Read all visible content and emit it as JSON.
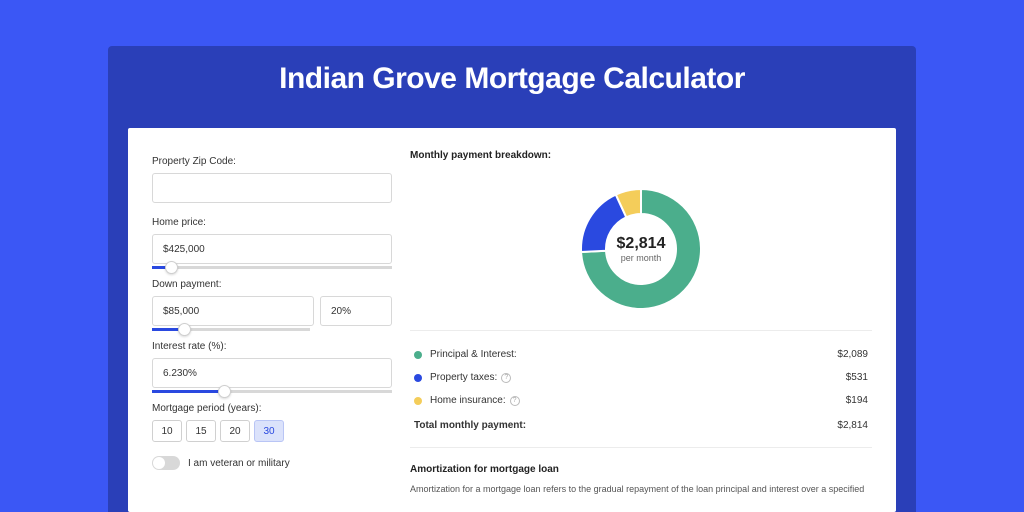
{
  "colors": {
    "page_bg": "#3b57f5",
    "frame_bg": "#2a3fb8",
    "card_bg": "#ffffff",
    "slider_fill": "#2a49e0",
    "slider_track": "#d8d8d8",
    "border": "#d8d8d8",
    "text_primary": "#333333",
    "active_btn_bg": "#dbe2fb"
  },
  "title": "Indian Grove Mortgage Calculator",
  "form": {
    "zip": {
      "label": "Property Zip Code:",
      "value": ""
    },
    "home_price": {
      "label": "Home price:",
      "value": "$425,000",
      "slider_pct": 8
    },
    "down_payment": {
      "label": "Down payment:",
      "amount": "$85,000",
      "percent": "20%",
      "slider_pct": 20
    },
    "interest_rate": {
      "label": "Interest rate (%):",
      "value": "6.230%",
      "slider_pct": 30
    },
    "period": {
      "label": "Mortgage period (years):",
      "options": [
        "10",
        "15",
        "20",
        "30"
      ],
      "selected": "30"
    },
    "veteran": {
      "label": "I am veteran or military",
      "checked": false
    }
  },
  "breakdown": {
    "title": "Monthly payment breakdown:",
    "chart": {
      "type": "donut",
      "center_value": "$2,814",
      "center_sub": "per month",
      "inner_radius": 35,
      "outer_radius": 60,
      "segments": [
        {
          "label": "Principal & Interest",
          "value": 2089,
          "pct": 74.2,
          "color": "#4bae8c"
        },
        {
          "label": "Property taxes",
          "value": 531,
          "pct": 18.9,
          "color": "#2a49e0"
        },
        {
          "label": "Home insurance",
          "value": 194,
          "pct": 6.9,
          "color": "#f4cd5a"
        }
      ]
    },
    "rows": [
      {
        "dot_color": "#4bae8c",
        "label": "Principal & Interest:",
        "value": "$2,089",
        "info": false
      },
      {
        "dot_color": "#2a49e0",
        "label": "Property taxes:",
        "value": "$531",
        "info": true
      },
      {
        "dot_color": "#f4cd5a",
        "label": "Home insurance:",
        "value": "$194",
        "info": true
      }
    ],
    "total": {
      "label": "Total monthly payment:",
      "value": "$2,814"
    }
  },
  "amortization": {
    "title": "Amortization for mortgage loan",
    "text": "Amortization for a mortgage loan refers to the gradual repayment of the loan principal and interest over a specified"
  }
}
